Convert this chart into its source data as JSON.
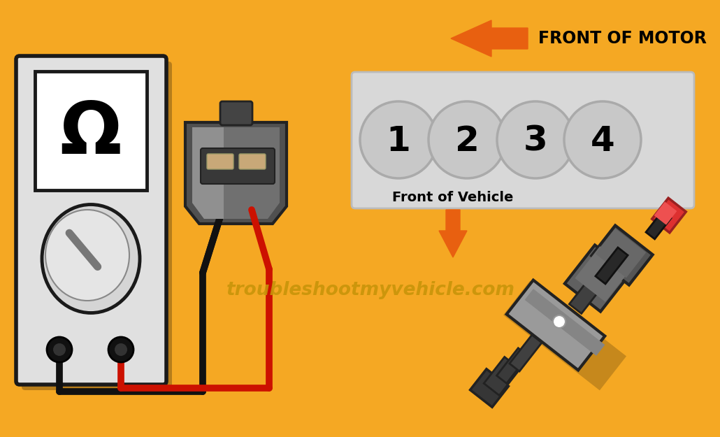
{
  "bg_color": "#F5A823",
  "watermark": "troubleshootmyvehicle.com",
  "watermark_color": "#C8940A",
  "front_motor_text": "FRONT OF MOTOR",
  "front_vehicle_text": "Front of Vehicle",
  "cylinder_numbers": [
    "1",
    "2",
    "3",
    "4"
  ],
  "multimeter_body_color": "#E0E0E0",
  "multimeter_border_color": "#1a1a1a",
  "wire_black_color": "#111111",
  "wire_red_color": "#CC1100",
  "arrow_orange_color": "#E86010",
  "panel_color": "#D8D8D8",
  "circle_bg_color": "#C8C8C8",
  "connector_dark": "#555555",
  "connector_mid": "#777777",
  "connector_light": "#999999",
  "injector_main": "#909090",
  "injector_dark": "#444444",
  "injector_red": "#DD3333"
}
